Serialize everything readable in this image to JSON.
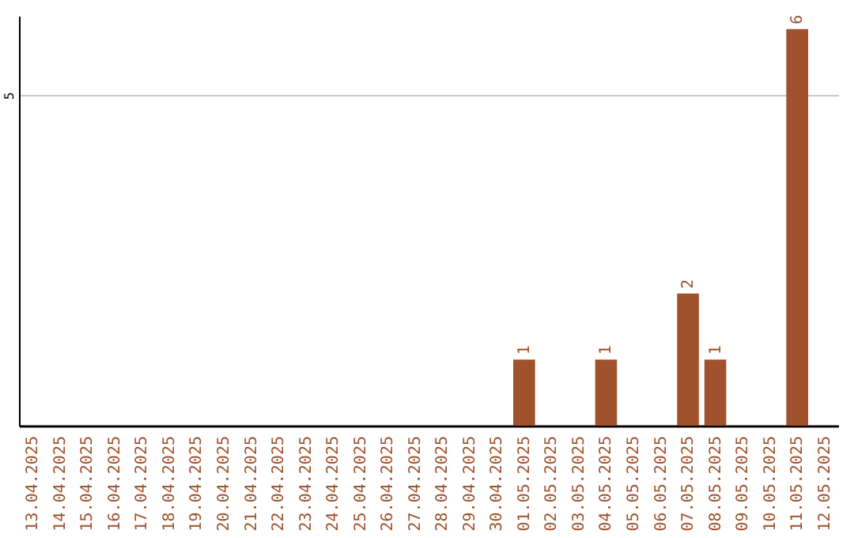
{
  "chart_data": {
    "type": "bar",
    "categories": [
      "13.04.2025",
      "14.04.2025",
      "15.04.2025",
      "16.04.2025",
      "17.04.2025",
      "18.04.2025",
      "19.04.2025",
      "20.04.2025",
      "21.04.2025",
      "22.04.2025",
      "23.04.2025",
      "24.04.2025",
      "25.04.2025",
      "26.04.2025",
      "27.04.2025",
      "28.04.2025",
      "29.04.2025",
      "30.04.2025",
      "01.05.2025",
      "02.05.2025",
      "03.05.2025",
      "04.05.2025",
      "05.05.2025",
      "06.05.2025",
      "07.05.2025",
      "08.05.2025",
      "09.05.2025",
      "10.05.2025",
      "11.05.2025",
      "12.05.2025"
    ],
    "values": [
      null,
      null,
      null,
      null,
      null,
      null,
      null,
      null,
      null,
      null,
      null,
      null,
      null,
      null,
      null,
      null,
      null,
      null,
      1,
      null,
      null,
      1,
      null,
      null,
      2,
      1,
      null,
      null,
      6,
      null
    ],
    "color": "#a0522d",
    "ylim": [
      0,
      6.2
    ],
    "yticks": [
      5
    ],
    "grid": "y",
    "data_labels": true
  }
}
